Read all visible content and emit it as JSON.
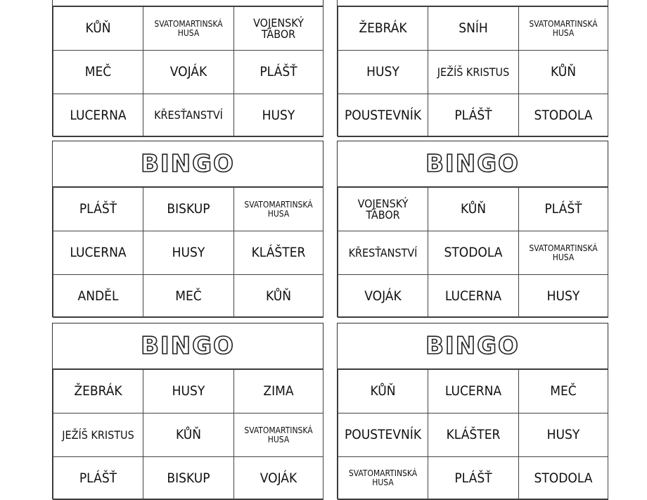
{
  "cards": [
    {
      "rows": [
        [
          "KŮŇ",
          "SVATOMARTINSKÁ HUSA",
          "VOJENSKÝ TÁBOR"
        ],
        [
          "MEČ",
          "VOJÁK",
          "PLÁŠŤ"
        ],
        [
          "LUCERNA",
          "KŘESŤANSTVÍ",
          "HUSY"
        ]
      ]
    },
    {
      "rows": [
        [
          "ŽEBRÁK",
          "SNÍH",
          "SVATOMARTINSKÁ HUSA"
        ],
        [
          "HUSY",
          "JEŽÍŠ KRISTUS",
          "KŮŇ"
        ],
        [
          "POUSTEVNÍK",
          "PLÁŠŤ",
          "STODOLA"
        ]
      ]
    },
    {
      "title": "BINGO",
      "rows": [
        [
          "PLÁŠŤ",
          "BISKUP",
          "SVATOMARTINSKÁ HUSA"
        ],
        [
          "LUCERNA",
          "HUSY",
          "KLÁŠTER"
        ],
        [
          "ANDĚL",
          "MEČ",
          "KŮŇ"
        ]
      ]
    },
    {
      "title": "BINGO",
      "rows": [
        [
          "VOJENSKÝ TÁBOR",
          "KŮŇ",
          "PLÁŠŤ"
        ],
        [
          "KŘESŤANSTVÍ",
          "STODOLA",
          "SVATOMARTINSKÁ HUSA"
        ],
        [
          "VOJÁK",
          "LUCERNA",
          "HUSY"
        ]
      ]
    },
    {
      "title": "BINGO",
      "rows": [
        [
          "ŽEBRÁK",
          "HUSY",
          "ZIMA"
        ],
        [
          "JEŽÍŠ KRISTUS",
          "KŮŇ",
          "SVATOMARTINSKÁ HUSA"
        ],
        [
          "PLÁŠŤ",
          "BISKUP",
          "VOJÁK"
        ]
      ]
    },
    {
      "title": "BINGO",
      "rows": [
        [
          "KŮŇ",
          "LUCERNA",
          "MEČ"
        ],
        [
          "POUSTEVNÍK",
          "KLÁŠTER",
          "HUSY"
        ],
        [
          "SVATOMARTINSKÁ HUSA",
          "PLÁŠŤ",
          "STODOLA"
        ]
      ]
    }
  ]
}
